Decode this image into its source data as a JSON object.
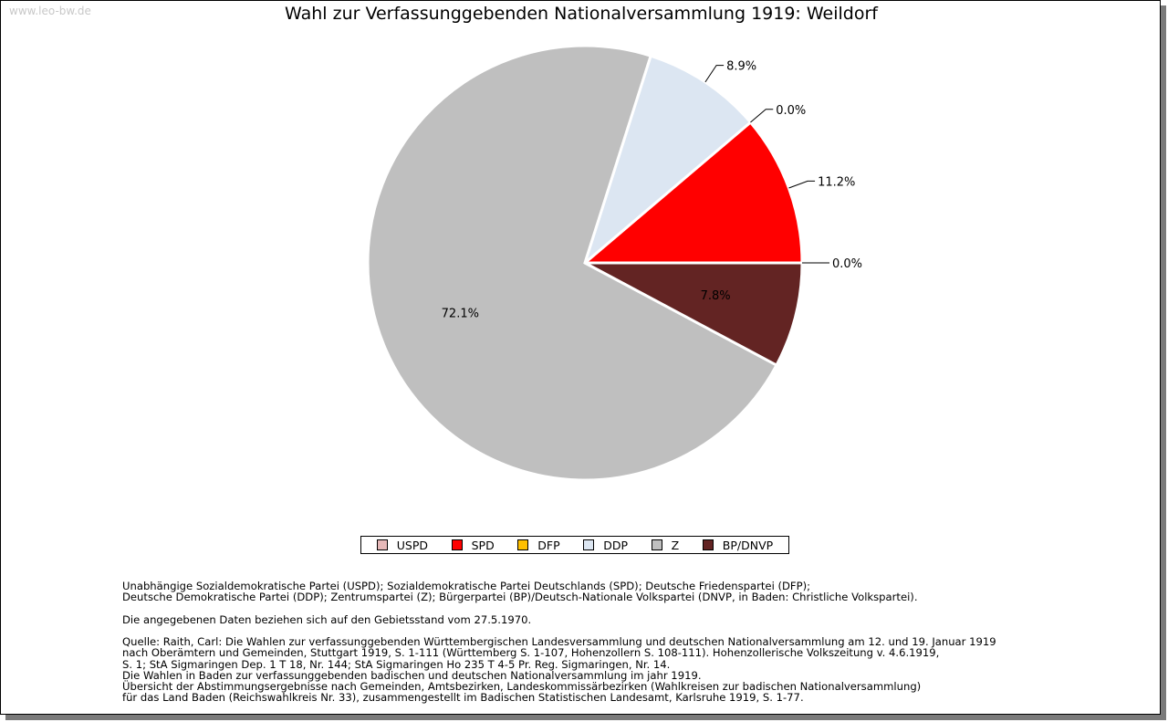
{
  "watermark": "www.leo-bw.de",
  "chart_data": {
    "type": "pie",
    "title": "Wahl zur Verfassunggebenden Nationalversammlung 1919: Weildorf",
    "categories": [
      "USPD",
      "SPD",
      "DFP",
      "DDP",
      "Z",
      "BP/DNVP"
    ],
    "values": [
      0.0,
      11.2,
      0.0,
      8.9,
      72.1,
      7.8
    ],
    "labels": [
      "0.0%",
      "11.2%",
      "0.0%",
      "8.9%",
      "72.1%",
      "7.8%"
    ],
    "colors": [
      "#e6b8b8",
      "#ff0000",
      "#ffc000",
      "#dce6f2",
      "#bfbfbf",
      "#632423"
    ],
    "legend_position": "bottom"
  },
  "notes": {
    "parties": [
      "Unabhängige Sozialdemokratische Partei (USPD); Sozialdemokratische Partei Deutschlands (SPD); Deutsche Friedenspartei (DFP);",
      "Deutsche Demokratische Partei (DDP); Zentrumspartei (Z); Bürgerpartei (BP)/Deutsch-Nationale Volkspartei (DNVP, in Baden: Christliche Volkspartei)."
    ],
    "territory": "Die angegebenen Daten beziehen sich auf den Gebietsstand vom 27.5.1970.",
    "source": [
      "Quelle: Raith, Carl: Die Wahlen zur verfassunggebenden Württembergischen Landesversammlung und deutschen Nationalversammlung am 12. und 19. Januar 1919",
      "nach Oberämtern und Gemeinden, Stuttgart 1919, S. 1-111 (Württemberg S. 1-107, Hohenzollern S. 108-111). Hohenzollerische Volkszeitung v. 4.6.1919,",
      "S. 1; StA Sigmaringen Dep. 1 T 18, Nr. 144; StA Sigmaringen Ho 235 T 4-5 Pr. Reg. Sigmaringen, Nr. 14.",
      "Die Wahlen in Baden zur verfassunggebenden badischen und deutschen Nationalversammlung im jahr 1919.",
      "Übersicht der Abstimmungsergebnisse nach Gemeinden, Amtsbezirken, Landeskommissärbezirken (Wahlkreisen zur badischen Nationalversammlung)",
      "für das Land Baden (Reichswahlkreis Nr. 33), zusammengestellt im Badischen Statistischen Landesamt, Karlsruhe 1919, S. 1-77."
    ]
  }
}
